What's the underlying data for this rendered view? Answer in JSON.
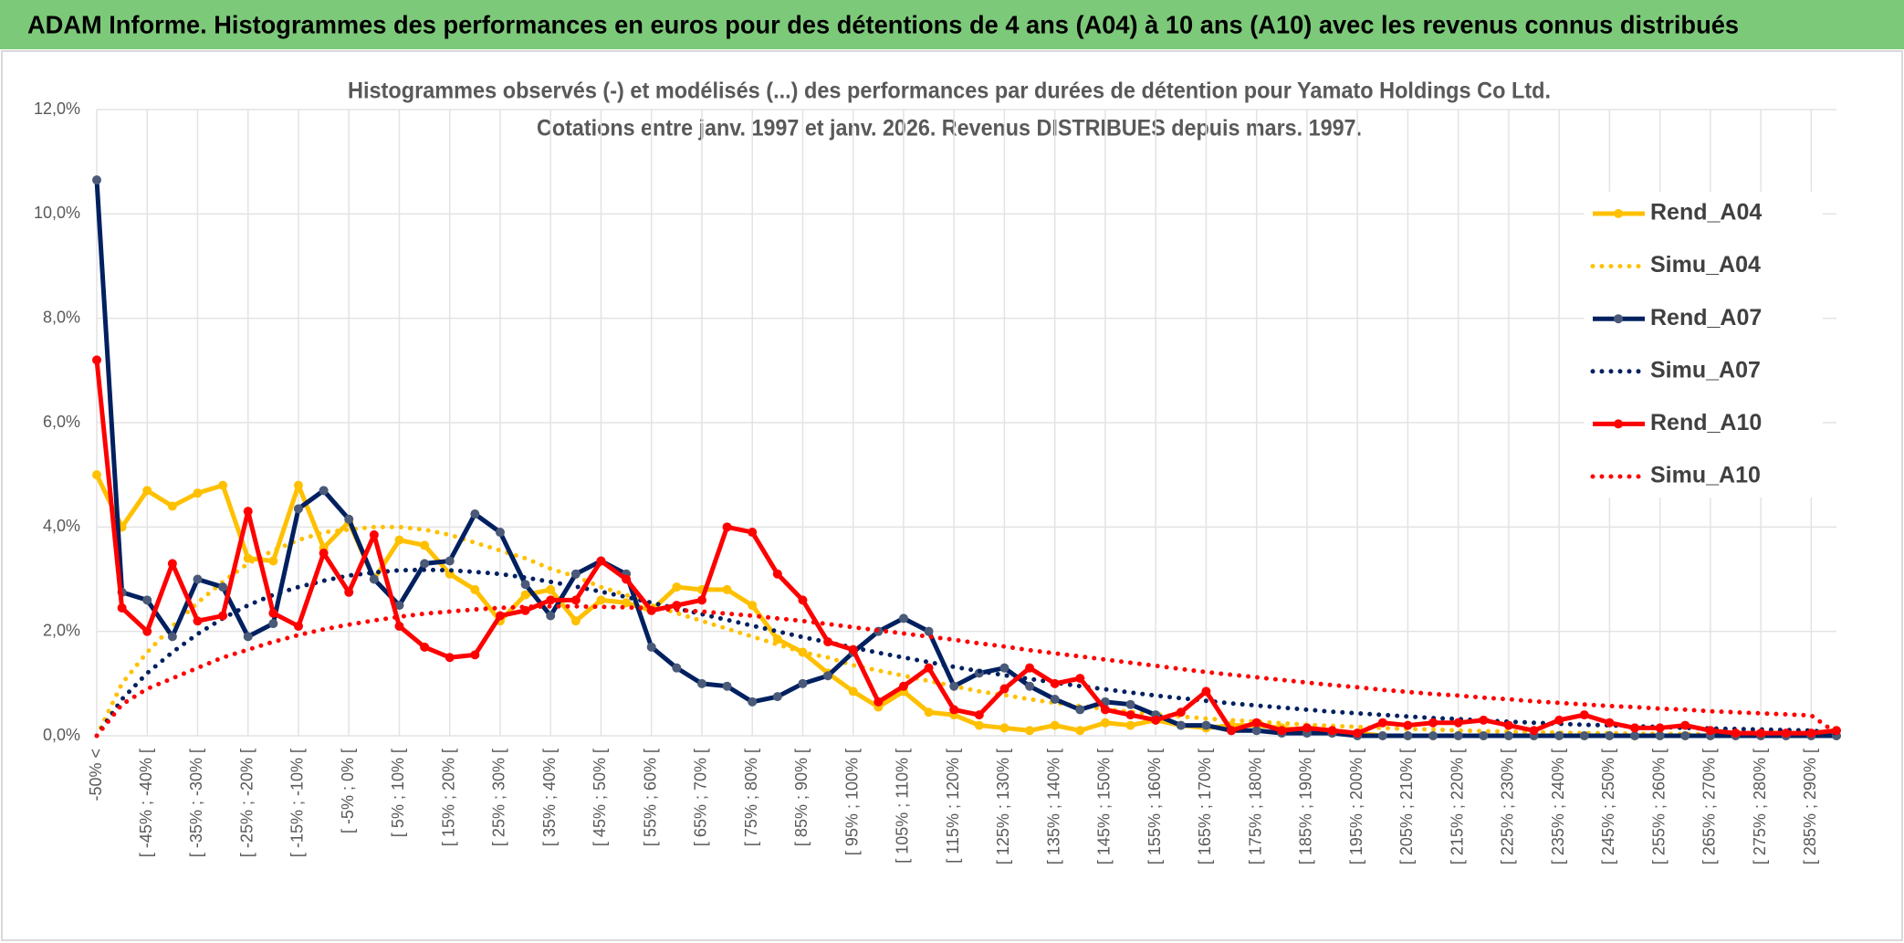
{
  "header": {
    "title": "ADAM Informe. Histogrammes des performances en euros pour des détentions de 4 ans (A04) à 10 ans (A10) avec les revenus connus distribués"
  },
  "chart_data": {
    "type": "line",
    "title": "Histogrammes observés (-) et modélisés (...) des performances par durées de détention pour Yamato Holdings Co Ltd.",
    "subtitle": "Cotations entre janv. 1997 et janv. 2026. Revenus DISTRIBUES depuis mars. 1997.",
    "categories": [
      "-50% <",
      null,
      "[ -45% ; -40% [",
      null,
      "[ -35% ; -30% [",
      null,
      "[ -25% ; -20% [",
      null,
      "[ -15% ; -10% [",
      null,
      "[ -5% ; 0% [",
      null,
      "[ 5% ; 10% [",
      null,
      "[ 15% ; 20% [",
      null,
      "[ 25% ; 30% [",
      null,
      "[ 35% ; 40% [",
      null,
      "[ 45% ; 50% [",
      null,
      "[ 55% ; 60% [",
      null,
      "[ 65% ; 70% [",
      null,
      "[ 75% ; 80% [",
      null,
      "[ 85% ; 90% [",
      null,
      "[ 95% ; 100% [",
      null,
      "[ 105% ; 110% [",
      null,
      "[ 115% ; 120% [",
      null,
      "[ 125% ; 130% [",
      null,
      "[ 135% ; 140% [",
      null,
      "[ 145% ; 150% [",
      null,
      "[ 155% ; 160% [",
      null,
      "[ 165% ; 170% [",
      null,
      "[ 175% ; 180% [",
      null,
      "[ 185% ; 190% [",
      null,
      "[ 195% ; 200% [",
      null,
      "[ 205% ; 210% [",
      null,
      "[ 215% ; 220% [",
      null,
      "[ 225% ; 230% [",
      null,
      "[ 235% ; 240% [",
      null,
      "[ 245% ; 250% [",
      null,
      "[ 255% ; 260% [",
      null,
      "[ 265% ; 270% [",
      null,
      "[ 275% ; 280% [",
      null,
      "[ 285% ; 290% [",
      null
    ],
    "ylim": [
      0,
      12
    ],
    "yticks": [
      {
        "value": 0,
        "label": "0,0%"
      },
      {
        "value": 2,
        "label": "2,0%"
      },
      {
        "value": 4,
        "label": "4,0%"
      },
      {
        "value": 6,
        "label": "6,0%"
      },
      {
        "value": 8,
        "label": "8,0%"
      },
      {
        "value": 10,
        "label": "10,0%"
      },
      {
        "value": 12,
        "label": "12,0%"
      }
    ],
    "grid": true,
    "legend": "right",
    "series": [
      {
        "name": "Rend_A04",
        "color": "#ffc000",
        "dash": "solid",
        "markers": true,
        "marker_color": "#ffc000",
        "values": [
          5.0,
          4.0,
          4.7,
          4.4,
          4.65,
          4.8,
          3.4,
          3.35,
          4.8,
          3.6,
          4.1,
          3.0,
          3.75,
          3.65,
          3.1,
          2.8,
          2.2,
          2.7,
          2.8,
          2.2,
          2.6,
          2.55,
          2.4,
          2.85,
          2.8,
          2.8,
          2.5,
          1.85,
          1.6,
          1.2,
          0.85,
          0.55,
          0.85,
          0.45,
          0.4,
          0.2,
          0.15,
          0.1,
          0.2,
          0.1,
          0.25,
          0.2,
          0.3,
          0.2,
          0.15,
          0.2,
          0.2,
          0.15,
          0.1,
          0.05,
          0.05,
          0,
          0,
          0,
          0,
          0,
          0,
          0,
          0,
          0,
          0,
          0,
          0,
          0,
          0,
          0,
          0,
          0,
          0,
          0
        ]
      },
      {
        "name": "Simu_A04",
        "color": "#ffc000",
        "dash": "dotted",
        "markers": false,
        "values": [
          0,
          1.0,
          1.6,
          2.1,
          2.55,
          2.95,
          3.3,
          3.55,
          3.75,
          3.9,
          3.95,
          4.0,
          4.0,
          3.95,
          3.85,
          3.7,
          3.55,
          3.4,
          3.2,
          3.05,
          2.85,
          2.7,
          2.5,
          2.35,
          2.2,
          2.05,
          1.9,
          1.75,
          1.6,
          1.5,
          1.35,
          1.25,
          1.15,
          1.05,
          0.95,
          0.85,
          0.78,
          0.7,
          0.63,
          0.57,
          0.51,
          0.46,
          0.41,
          0.37,
          0.33,
          0.3,
          0.27,
          0.24,
          0.21,
          0.19,
          0.17,
          0.15,
          0.13,
          0.12,
          0.1,
          0.09,
          0.08,
          0.07,
          0.06,
          0.05,
          0.05,
          0.04,
          0.04,
          0.03,
          0.03,
          0.03,
          0.02,
          0.02,
          0.02,
          0
        ]
      },
      {
        "name": "Rend_A07",
        "color": "#002060",
        "dash": "solid",
        "markers": true,
        "marker_color": "#4a5a78",
        "values": [
          10.65,
          2.75,
          2.6,
          1.9,
          3.0,
          2.85,
          1.9,
          2.15,
          4.35,
          4.7,
          4.15,
          3.0,
          2.5,
          3.3,
          3.35,
          4.25,
          3.9,
          2.9,
          2.3,
          3.1,
          3.35,
          3.1,
          1.7,
          1.3,
          1.0,
          0.95,
          0.65,
          0.75,
          1.0,
          1.15,
          1.6,
          2.0,
          2.25,
          2.0,
          0.95,
          1.2,
          1.3,
          0.95,
          0.7,
          0.5,
          0.65,
          0.6,
          0.4,
          0.2,
          0.2,
          0.1,
          0.1,
          0.05,
          0.05,
          0.05,
          0,
          0,
          0,
          0,
          0,
          0,
          0,
          0,
          0,
          0,
          0,
          0,
          0,
          0,
          0,
          0,
          0,
          0,
          0,
          0
        ]
      },
      {
        "name": "Simu_A07",
        "color": "#002060",
        "dash": "dotted",
        "markers": false,
        "values": [
          0,
          0.7,
          1.2,
          1.6,
          1.95,
          2.25,
          2.5,
          2.7,
          2.85,
          2.97,
          3.07,
          3.13,
          3.17,
          3.18,
          3.17,
          3.14,
          3.1,
          3.03,
          2.95,
          2.86,
          2.76,
          2.66,
          2.55,
          2.44,
          2.33,
          2.22,
          2.11,
          2.0,
          1.89,
          1.79,
          1.69,
          1.59,
          1.5,
          1.41,
          1.32,
          1.24,
          1.16,
          1.09,
          1.02,
          0.95,
          0.89,
          0.83,
          0.77,
          0.72,
          0.67,
          0.62,
          0.58,
          0.54,
          0.5,
          0.46,
          0.43,
          0.4,
          0.37,
          0.34,
          0.32,
          0.29,
          0.27,
          0.25,
          0.23,
          0.21,
          0.2,
          0.18,
          0.17,
          0.15,
          0.14,
          0.13,
          0.12,
          0.11,
          0.1,
          0.05
        ]
      },
      {
        "name": "Rend_A10",
        "color": "#ff0000",
        "dash": "solid",
        "markers": true,
        "marker_color": "#ff0000",
        "values": [
          7.2,
          2.45,
          2.0,
          3.3,
          2.2,
          2.3,
          4.3,
          2.35,
          2.1,
          3.5,
          2.75,
          3.85,
          2.1,
          1.7,
          1.5,
          1.55,
          2.3,
          2.4,
          2.6,
          2.6,
          3.35,
          3.0,
          2.4,
          2.5,
          2.6,
          4.0,
          3.9,
          3.1,
          2.6,
          1.8,
          1.65,
          0.65,
          0.95,
          1.3,
          0.5,
          0.4,
          0.9,
          1.3,
          1.0,
          1.1,
          0.5,
          0.4,
          0.3,
          0.45,
          0.85,
          0.1,
          0.25,
          0.1,
          0.15,
          0.1,
          0.05,
          0.25,
          0.2,
          0.25,
          0.25,
          0.3,
          0.2,
          0.1,
          0.3,
          0.4,
          0.25,
          0.15,
          0.15,
          0.2,
          0.1,
          0.05,
          0.05,
          0.05,
          0.05,
          0.1
        ]
      },
      {
        "name": "Simu_A10",
        "color": "#ff0000",
        "dash": "dotted",
        "markers": false,
        "values": [
          0,
          0.6,
          0.9,
          1.1,
          1.3,
          1.5,
          1.65,
          1.8,
          1.93,
          2.04,
          2.13,
          2.21,
          2.28,
          2.34,
          2.38,
          2.42,
          2.45,
          2.47,
          2.48,
          2.48,
          2.47,
          2.46,
          2.44,
          2.41,
          2.38,
          2.34,
          2.3,
          2.25,
          2.2,
          2.14,
          2.08,
          2.02,
          1.96,
          1.9,
          1.84,
          1.77,
          1.71,
          1.64,
          1.58,
          1.52,
          1.46,
          1.4,
          1.34,
          1.28,
          1.22,
          1.17,
          1.12,
          1.07,
          1.02,
          0.97,
          0.93,
          0.88,
          0.84,
          0.8,
          0.77,
          0.73,
          0.7,
          0.66,
          0.63,
          0.6,
          0.57,
          0.55,
          0.52,
          0.5,
          0.47,
          0.45,
          0.43,
          0.41,
          0.39,
          0.05
        ]
      }
    ]
  }
}
